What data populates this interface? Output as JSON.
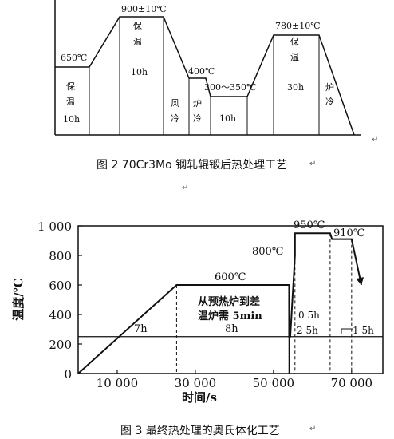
{
  "figure2": {
    "labels": {
      "t650": "650℃",
      "t900": "900±10℃",
      "t400": "400℃",
      "t300_350": "300～350℃",
      "t780": "780±10℃",
      "bao1": "保",
      "wen1": "温",
      "h1": "10h",
      "bao2": "保",
      "wen2": "温",
      "h2": "10h",
      "feng": "风",
      "leng1": "冷",
      "lu1": "炉",
      "leng2": "冷",
      "h3": "10h",
      "bao3": "保",
      "wen3": "温",
      "h4": "30h",
      "lu2": "炉",
      "leng3": "冷"
    },
    "caption": "图 2    70Cr3Mo 钢轧辊锻后热处理工艺"
  },
  "figure3": {
    "y_ticks": [
      "1 000",
      "800",
      "600",
      "400",
      "200",
      "0"
    ],
    "x_ticks": [
      "10 000",
      "30 000",
      "50 000",
      "70 000"
    ],
    "ylabel": "温度/℃",
    "xlabel": "时间/s",
    "annotations": {
      "t600": "600℃",
      "t800": "800℃",
      "t950": "950℃",
      "t910": "910℃",
      "d7h": "7h",
      "d8h": "8h",
      "transfer_line1": "从预热炉到差",
      "transfer_line2": "温炉需 5min",
      "d05h": "0 5h",
      "d25h": "2 5h",
      "d15h": "1 5h"
    },
    "caption": "图 3    最终热处理的奥氏体化工艺"
  },
  "chart_data": {
    "type": "line",
    "title": "",
    "xlabel": "时间/s",
    "ylabel": "温度/℃",
    "xlim": [
      0,
      78000
    ],
    "ylim": [
      0,
      1000
    ],
    "series": [
      {
        "x": [
          0,
          25200,
          54000,
          54000,
          54300,
          55500,
          55500,
          64500,
          65000,
          70000,
          72500
        ],
        "y": [
          0,
          600,
          600,
          250,
          250,
          800,
          950,
          950,
          910,
          910,
          600
        ]
      }
    ],
    "reference_line_y": 250
  }
}
